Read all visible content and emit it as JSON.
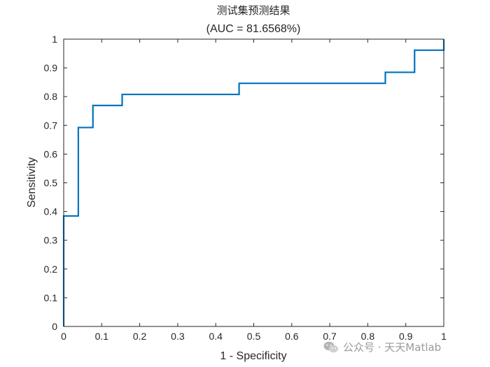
{
  "chart_data": {
    "type": "line",
    "title": "测试集预测结果",
    "subtitle": "(AUC = 81.6568%)",
    "xlabel": "1 - Specificity",
    "ylabel": "Sensitivity",
    "xlim": [
      0,
      1
    ],
    "ylim": [
      0,
      1
    ],
    "xticks": [
      0,
      0.1,
      0.2,
      0.3,
      0.4,
      0.5,
      0.6,
      0.7,
      0.8,
      0.9,
      1
    ],
    "yticks": [
      0,
      0.1,
      0.2,
      0.3,
      0.4,
      0.5,
      0.6,
      0.7,
      0.8,
      0.9,
      1
    ],
    "xtick_labels": [
      "0",
      "0.1",
      "0.2",
      "0.3",
      "0.4",
      "0.5",
      "0.6",
      "0.7",
      "0.8",
      "0.9",
      "1"
    ],
    "ytick_labels": [
      "0",
      "0.1",
      "0.2",
      "0.3",
      "0.4",
      "0.5",
      "0.6",
      "0.7",
      "0.8",
      "0.9",
      "1"
    ],
    "grid": false,
    "series": [
      {
        "color": "#0072BD",
        "x": [
          0,
          0,
          0.0385,
          0.0385,
          0.0769,
          0.0769,
          0.1538,
          0.1538,
          0.4615,
          0.4615,
          0.8462,
          0.8462,
          0.9231,
          0.9231,
          1,
          1
        ],
        "y": [
          0,
          0.3846,
          0.3846,
          0.6923,
          0.6923,
          0.7692,
          0.7692,
          0.8077,
          0.8077,
          0.8462,
          0.8462,
          0.8846,
          0.8846,
          0.9615,
          0.9615,
          1
        ]
      }
    ]
  },
  "watermark": {
    "text": "公众号 · 天天Matlab",
    "icon": "wechat-icon"
  }
}
